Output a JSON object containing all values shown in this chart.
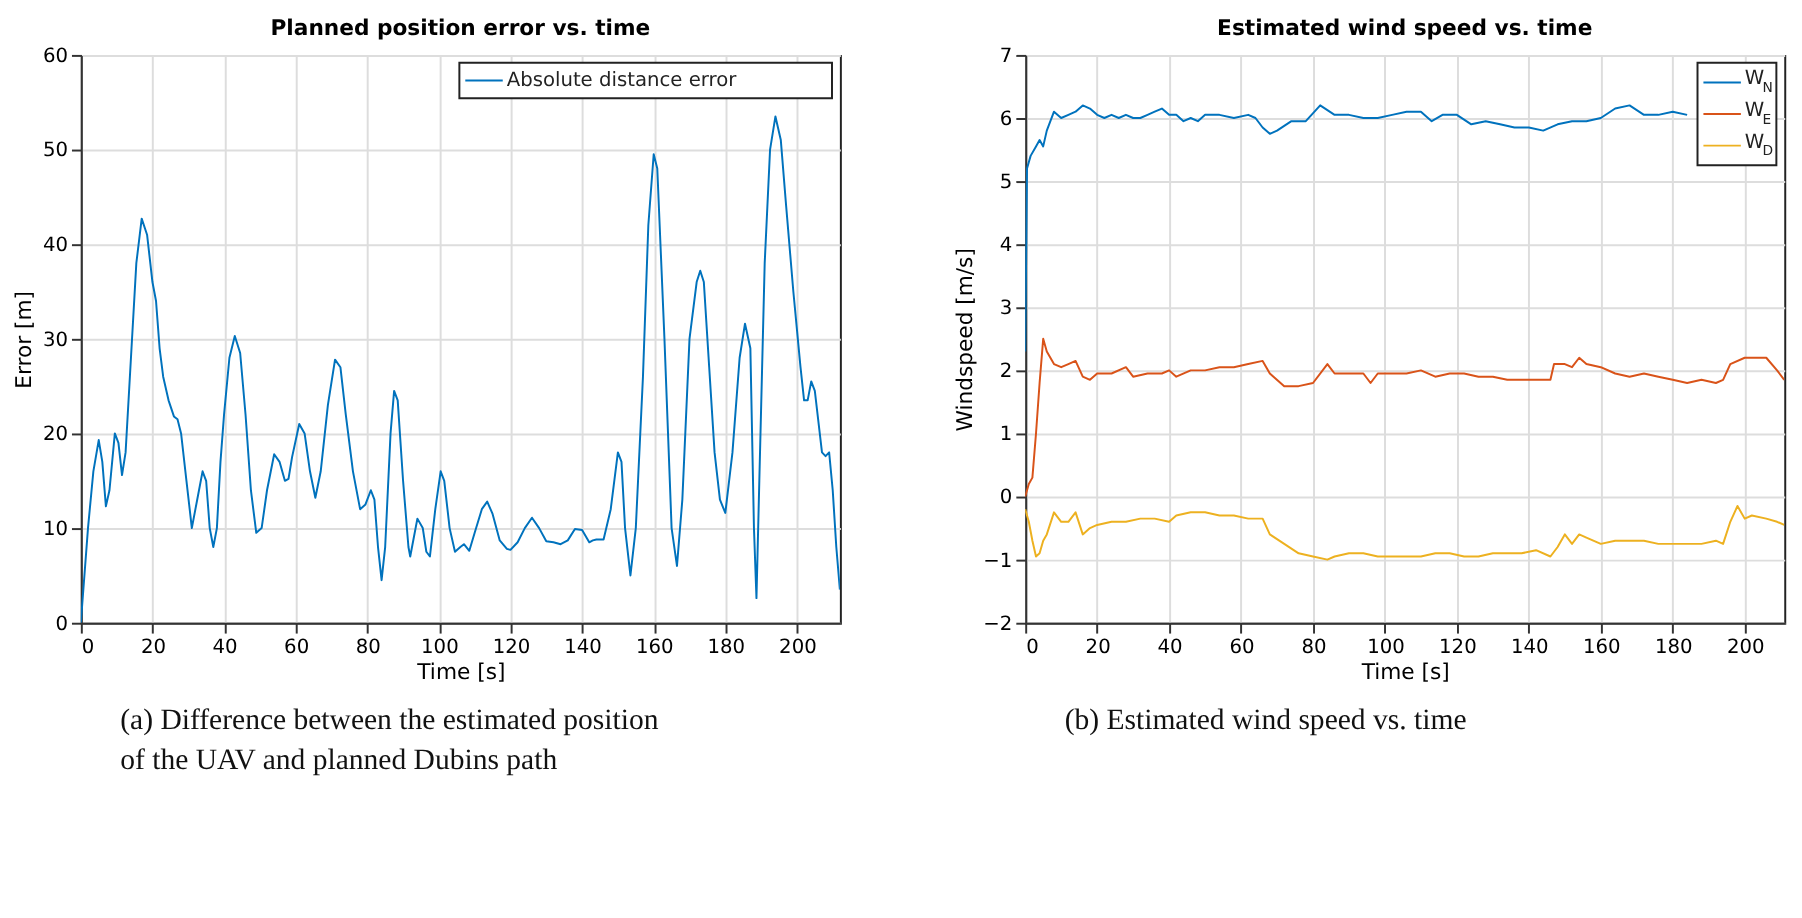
{
  "chart_data": [
    {
      "type": "line",
      "title": "Planned position error vs. time",
      "xlabel": "Time [s]",
      "ylabel": "Error [m]",
      "xlim": [
        0,
        212
      ],
      "xticks": [
        0,
        20,
        40,
        60,
        80,
        100,
        120,
        140,
        160,
        180,
        200
      ],
      "ylim": [
        0,
        60
      ],
      "yticks": [
        0,
        10,
        20,
        30,
        40,
        50,
        60
      ],
      "grid": true,
      "legend": "top right",
      "x": [
        0,
        2,
        3.5,
        5,
        6,
        7,
        8,
        9.5,
        10.5,
        11.5,
        12.5,
        14,
        15.5,
        17,
        18.5,
        20,
        21,
        22,
        23,
        24.5,
        26,
        27,
        28,
        29.5,
        31,
        32.5,
        34,
        35,
        36,
        37,
        38,
        39,
        40,
        41.5,
        43,
        44.5,
        46,
        47.5,
        49,
        50.5,
        52,
        54,
        55.5,
        57,
        58,
        59,
        61,
        62.5,
        64,
        65.5,
        67,
        69,
        71,
        72.5,
        74,
        76,
        78,
        79.5,
        81,
        82,
        83,
        84,
        85,
        86.5,
        87.5,
        88.5,
        90,
        91.5,
        92,
        93,
        94,
        95.5,
        96.5,
        97.5,
        99,
        100.5,
        101.5,
        103,
        104.5,
        106,
        107,
        108.5,
        110,
        112,
        113.5,
        115,
        117,
        119,
        120,
        122,
        124,
        126,
        128,
        130,
        132,
        134,
        136,
        138,
        140,
        142,
        143,
        144,
        146,
        148,
        150,
        151,
        152,
        153.5,
        155,
        157,
        158.5,
        160,
        161,
        163,
        165,
        166.5,
        168,
        170,
        172,
        173,
        174,
        175.5,
        177,
        178.5,
        180,
        182,
        184,
        185.5,
        187,
        188,
        188.7,
        189.5,
        191,
        192.5,
        194,
        195.5,
        197,
        199,
        201,
        202,
        203,
        204,
        205,
        207,
        208,
        209,
        210,
        211,
        212
      ],
      "series": [
        {
          "name": "Absolute distance error",
          "color": "#0072bd",
          "values": [
            0,
            10,
            16,
            19.3,
            17,
            12.3,
            14,
            20,
            19,
            15.6,
            18,
            28,
            38,
            42.7,
            41,
            36,
            34,
            29,
            26,
            23.5,
            21.8,
            21.5,
            20,
            15,
            10,
            13,
            16,
            15,
            10,
            8,
            10,
            17,
            22,
            28,
            30.3,
            28.5,
            22,
            14,
            9.5,
            10,
            14,
            17.8,
            17,
            15,
            15.2,
            17.5,
            21,
            20,
            16,
            13.2,
            16,
            23,
            27.8,
            27,
            22,
            16,
            12,
            12.5,
            14,
            13,
            8,
            4.5,
            8,
            20,
            24.5,
            23.5,
            15,
            8,
            7,
            9,
            11,
            10,
            7.5,
            7,
            12,
            16,
            15,
            10,
            7.5,
            8,
            8.3,
            7.6,
            9.5,
            12,
            12.8,
            11.5,
            8.7,
            7.8,
            7.7,
            8.5,
            10,
            11.1,
            10,
            8.6,
            8.5,
            8.3,
            8.7,
            9.9,
            9.8,
            8.5,
            8.7,
            8.8,
            8.8,
            12,
            18,
            17,
            10,
            5,
            10,
            26,
            42,
            49.5,
            48,
            30,
            10,
            6,
            13,
            30,
            36,
            37.2,
            36,
            27,
            18,
            13,
            11.6,
            18,
            28,
            31.6,
            29,
            10,
            2.6,
            15,
            38,
            50,
            53.5,
            51,
            44,
            35,
            27,
            23.5,
            23.5,
            25.5,
            24.5,
            18,
            17.6,
            18,
            14,
            8,
            3.5
          ]
        }
      ],
      "annotations": [
        "(a) Difference between the estimated position of the UAV and planned Dubins path"
      ]
    },
    {
      "type": "line",
      "title": "Estimated wind speed vs. time",
      "xlabel": "Time [s]",
      "ylabel": "Windspeed [m/s]",
      "xlim": [
        0,
        211
      ],
      "xticks": [
        0,
        20,
        40,
        60,
        80,
        100,
        120,
        140,
        160,
        180,
        200
      ],
      "ylim": [
        -2,
        7
      ],
      "yticks": [
        -2,
        -1,
        0,
        1,
        2,
        3,
        4,
        5,
        6,
        7
      ],
      "grid": true,
      "legend": "top right",
      "series": [
        {
          "name": "W$_{N}$",
          "color": "#0072bd",
          "x": [
            0,
            0.5,
            1.5,
            3,
            4,
            5,
            6,
            8,
            10,
            12,
            14,
            16,
            18,
            20,
            22,
            24,
            26,
            28,
            30,
            32,
            34,
            36,
            38,
            40,
            42,
            44,
            46,
            48,
            50,
            54,
            58,
            62,
            64,
            66,
            68,
            70,
            74,
            78,
            82,
            86,
            90,
            94,
            98,
            102,
            106,
            110,
            113,
            116,
            120,
            124,
            128,
            132,
            136,
            140,
            144,
            148,
            152,
            156,
            160,
            164,
            168,
            172,
            176,
            180,
            184
          ],
          "values": [
            2.3,
            5.2,
            5.4,
            5.55,
            5.65,
            5.55,
            5.8,
            6.1,
            6.0,
            6.05,
            6.1,
            6.2,
            6.15,
            6.05,
            6.0,
            6.05,
            6.0,
            6.05,
            6.0,
            6.0,
            6.05,
            6.1,
            6.15,
            6.05,
            6.05,
            5.95,
            6.0,
            5.95,
            6.05,
            6.05,
            6.0,
            6.05,
            6.0,
            5.85,
            5.75,
            5.8,
            5.95,
            5.95,
            6.2,
            6.05,
            6.05,
            6.0,
            6.0,
            6.05,
            6.1,
            6.1,
            5.95,
            6.05,
            6.05,
            5.9,
            5.95,
            5.9,
            5.85,
            5.85,
            5.8,
            5.9,
            5.95,
            5.95,
            6.0,
            6.15,
            6.2,
            6.05,
            6.05,
            6.1,
            6.05
          ]
        },
        {
          "name": "W$_{E}$",
          "color": "#d95319",
          "x": [
            0,
            1,
            2,
            3,
            4,
            5,
            6,
            8,
            10,
            12,
            14,
            16,
            18,
            20,
            24,
            28,
            30,
            34,
            38,
            40,
            42,
            46,
            50,
            54,
            58,
            62,
            66,
            68,
            72,
            76,
            80,
            84,
            86,
            90,
            94,
            96,
            98,
            102,
            106,
            110,
            114,
            118,
            122,
            126,
            130,
            134,
            138,
            142,
            146,
            147,
            150,
            152,
            154,
            156,
            160,
            164,
            168,
            172,
            176,
            180,
            184,
            188,
            192,
            194,
            196,
            200,
            204,
            206,
            209,
            211
          ],
          "values": [
            0,
            0.2,
            0.3,
            1.0,
            1.8,
            2.5,
            2.3,
            2.1,
            2.05,
            2.1,
            2.15,
            1.9,
            1.85,
            1.95,
            1.95,
            2.05,
            1.9,
            1.95,
            1.95,
            2.0,
            1.9,
            2.0,
            2.0,
            2.05,
            2.05,
            2.1,
            2.15,
            1.95,
            1.75,
            1.75,
            1.8,
            2.1,
            1.95,
            1.95,
            1.95,
            1.8,
            1.95,
            1.95,
            1.95,
            2.0,
            1.9,
            1.95,
            1.95,
            1.9,
            1.9,
            1.85,
            1.85,
            1.85,
            1.85,
            2.1,
            2.1,
            2.05,
            2.2,
            2.1,
            2.05,
            1.95,
            1.9,
            1.95,
            1.9,
            1.85,
            1.8,
            1.85,
            1.8,
            1.85,
            2.1,
            2.2,
            2.2,
            2.2,
            2.0,
            1.85
          ]
        },
        {
          "name": "W$_{D}$",
          "color": "#edb120",
          "x": [
            0,
            1,
            2,
            3,
            4,
            5,
            6,
            8,
            10,
            12,
            14,
            16,
            18,
            20,
            24,
            28,
            32,
            36,
            40,
            42,
            46,
            50,
            54,
            58,
            62,
            66,
            68,
            72,
            76,
            80,
            84,
            86,
            90,
            94,
            98,
            102,
            106,
            110,
            114,
            118,
            122,
            126,
            130,
            134,
            138,
            142,
            146,
            148,
            150,
            152,
            154,
            156,
            160,
            164,
            168,
            172,
            176,
            180,
            184,
            188,
            192,
            194,
            196,
            198,
            200,
            202,
            206,
            209,
            211
          ],
          "values": [
            -0.2,
            -0.4,
            -0.7,
            -0.95,
            -0.9,
            -0.7,
            -0.6,
            -0.25,
            -0.4,
            -0.4,
            -0.25,
            -0.6,
            -0.5,
            -0.45,
            -0.4,
            -0.4,
            -0.35,
            -0.35,
            -0.4,
            -0.3,
            -0.25,
            -0.25,
            -0.3,
            -0.3,
            -0.35,
            -0.35,
            -0.6,
            -0.75,
            -0.9,
            -0.95,
            -1.0,
            -0.95,
            -0.9,
            -0.9,
            -0.95,
            -0.95,
            -0.95,
            -0.95,
            -0.9,
            -0.9,
            -0.95,
            -0.95,
            -0.9,
            -0.9,
            -0.9,
            -0.85,
            -0.95,
            -0.8,
            -0.6,
            -0.75,
            -0.6,
            -0.65,
            -0.75,
            -0.7,
            -0.7,
            -0.7,
            -0.75,
            -0.75,
            -0.75,
            -0.75,
            -0.7,
            -0.75,
            -0.4,
            -0.15,
            -0.35,
            -0.3,
            -0.35,
            -0.4,
            -0.45
          ]
        }
      ],
      "annotations": [
        "(b) Estimated wind speed vs. time"
      ]
    }
  ]
}
